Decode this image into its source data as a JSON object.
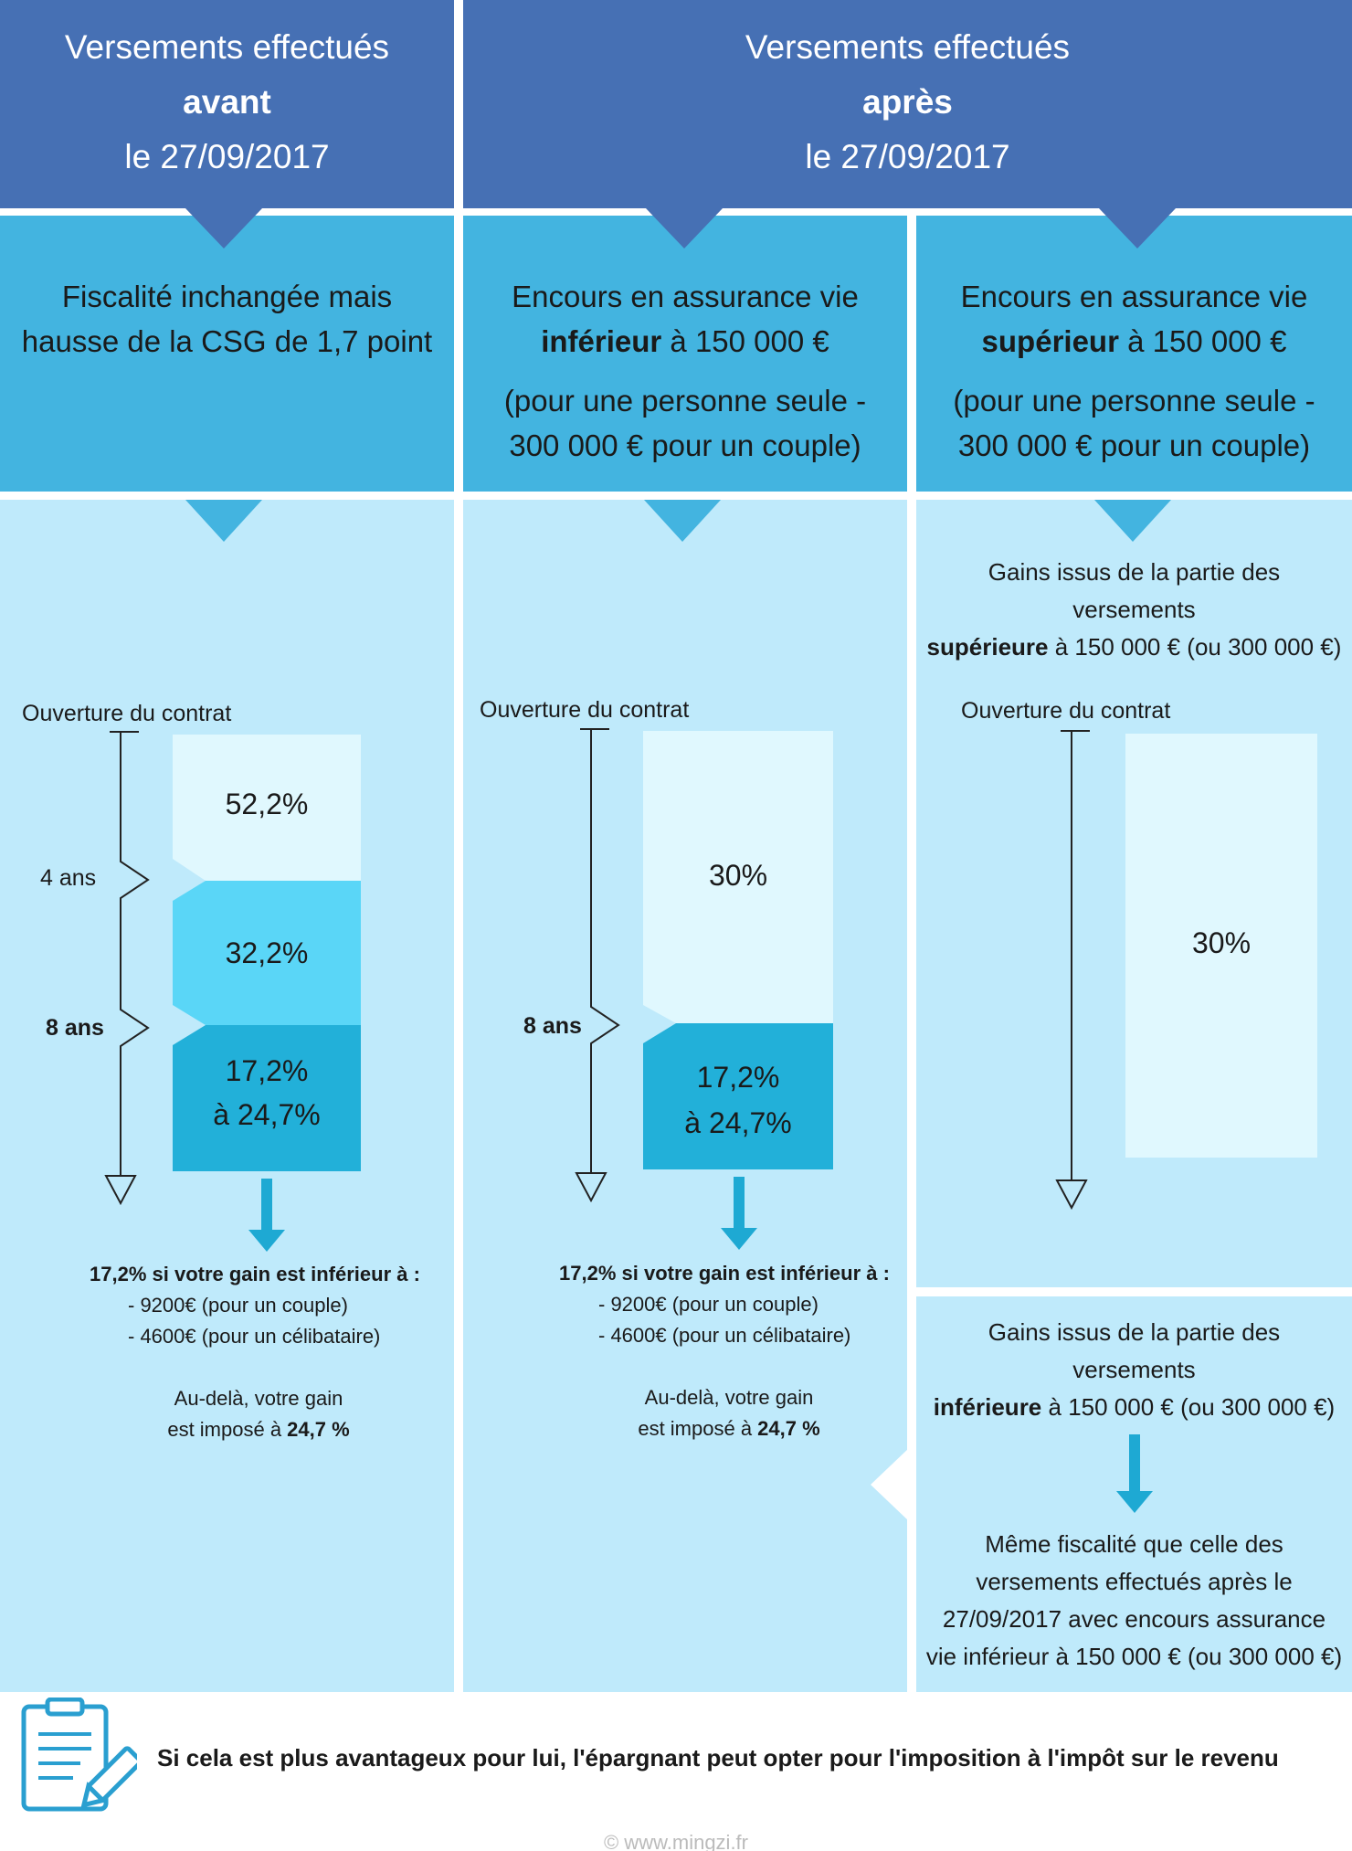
{
  "header": {
    "left": {
      "line1": "Versements effectués",
      "line2": "avant",
      "line3": "le 27/09/2017"
    },
    "right": {
      "line1": "Versements effectués",
      "line2": "après",
      "line3": "le 27/09/2017"
    }
  },
  "columns": {
    "col1": {
      "title_line1": "Fiscalité inchangée mais",
      "title_line2": "hausse de la CSG de 1,7 point"
    },
    "col2": {
      "title_line1": "Encours en assurance vie",
      "title_bold": "inférieur",
      "title_rest": " à 150 000 €",
      "title_line3": "(pour une personne seule -",
      "title_line4": "300 000 € pour un couple)"
    },
    "col3": {
      "title_line1": "Encours en assurance vie",
      "title_bold": "supérieur",
      "title_rest": " à 150 000 €",
      "title_line3": "(pour une personne seule -",
      "title_line4": "300 000 € pour un couple)"
    }
  },
  "timeline": {
    "start_label": "Ouverture du contrat",
    "mark_4": "4 ans",
    "mark_8": "8 ans"
  },
  "bars": {
    "col1": {
      "seg1": "52,2%",
      "seg2": "32,2%",
      "seg3_line1": "17,2%",
      "seg3_line2": "à 24,7%"
    },
    "col2": {
      "seg1": "30%",
      "seg2_line1": "17,2%",
      "seg2_line2": "à 24,7%"
    },
    "col3": {
      "seg1": "30%"
    }
  },
  "notes": {
    "gain_rule_bold": "17,2% si votre gain est inférieur à :",
    "couple": "- 9200€ (pour un couple)",
    "single": "- 4600€ (pour un célibataire)",
    "beyond_line1": "Au-delà, votre gain",
    "beyond_line2_pre": "est imposé à ",
    "beyond_line2_bold": "24,7 %"
  },
  "col3_top": {
    "line1": "Gains issus de la partie des",
    "line2": "versements",
    "line3_bold": "supérieure",
    "line3_rest": " à 150 000 € (ou 300 000 €)"
  },
  "col3_bottom": {
    "line1": "Gains issus de la partie des",
    "line2": "versements",
    "line3_bold": "inférieure",
    "line3_rest": " à 150 000 € (ou 300 000 €)",
    "result_line1": "Même fiscalité que celle des",
    "result_line2": "versements effectués après le",
    "result_line3": "27/09/2017 avec encours assurance",
    "result_line4": "vie inférieur à 150 000 € (ou 300 000 €)"
  },
  "footer": {
    "text": "Si cela est plus avantageux pour lui, l'épargnant peut opter pour l'imposition à l'impôt sur le revenu",
    "credit": "© www.mingzi.fr"
  },
  "colors": {
    "header": "#4670b4",
    "mid": "#43b4e0",
    "pane": "#bfeafb",
    "seg_light": "#e0f8fe",
    "seg_mid": "#5ad6f7",
    "seg_dark": "#22b0d9",
    "arrow": "#1ea9d3"
  }
}
